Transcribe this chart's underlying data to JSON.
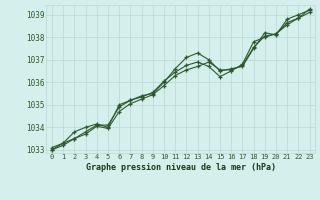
{
  "title": "Graphe pression niveau de la mer (hPa)",
  "xlabel_hours": [
    0,
    1,
    2,
    3,
    4,
    5,
    6,
    7,
    8,
    9,
    10,
    11,
    12,
    13,
    14,
    15,
    16,
    17,
    18,
    19,
    20,
    21,
    22,
    23
  ],
  "line1": [
    1033.0,
    1033.3,
    1033.5,
    1033.8,
    1034.1,
    1034.1,
    1034.9,
    1035.2,
    1035.4,
    1035.5,
    1036.0,
    1036.6,
    1037.1,
    1037.3,
    1037.0,
    1036.5,
    1036.6,
    1036.7,
    1037.5,
    1038.2,
    1038.1,
    1038.8,
    1039.0,
    1039.2
  ],
  "line2": [
    1033.1,
    1033.3,
    1033.8,
    1034.0,
    1034.15,
    1034.0,
    1035.0,
    1035.2,
    1035.35,
    1035.55,
    1036.05,
    1036.45,
    1036.75,
    1036.9,
    1036.7,
    1036.25,
    1036.5,
    1036.8,
    1037.8,
    1038.0,
    1038.15,
    1038.55,
    1038.85,
    1039.1
  ],
  "line3": [
    1033.0,
    1033.2,
    1033.5,
    1033.7,
    1034.05,
    1033.95,
    1034.7,
    1035.05,
    1035.25,
    1035.45,
    1035.85,
    1036.3,
    1036.55,
    1036.7,
    1036.9,
    1036.55,
    1036.55,
    1036.75,
    1037.55,
    1038.05,
    1038.15,
    1038.65,
    1038.85,
    1039.25
  ],
  "ylim_min": 1032.86,
  "ylim_max": 1039.43,
  "yticks": [
    1033,
    1034,
    1035,
    1036,
    1037,
    1038,
    1039
  ],
  "bg_color": "#d5efec",
  "grid_color": "#b8d8d4",
  "line_color": "#2d5a2d",
  "text_color": "#2d5a2d",
  "title_color": "#1a3a1a"
}
